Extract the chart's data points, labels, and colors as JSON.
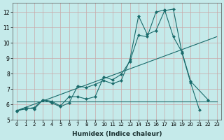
{
  "xlabel": "Humidex (Indice chaleur)",
  "ylabel": "",
  "xlim": [
    -0.5,
    23.5
  ],
  "ylim": [
    5.0,
    12.6
  ],
  "yticks": [
    5,
    6,
    7,
    8,
    9,
    10,
    11,
    12
  ],
  "xticks": [
    0,
    1,
    2,
    3,
    4,
    5,
    6,
    7,
    8,
    9,
    10,
    11,
    12,
    13,
    14,
    15,
    16,
    17,
    18,
    19,
    20,
    21,
    22,
    23
  ],
  "bg_color": "#c5eaea",
  "grid_color": "#c8a8a8",
  "line_color": "#1a6b6b",
  "series1_x": [
    0,
    1,
    2,
    3,
    4,
    5,
    6,
    7,
    8,
    9,
    10,
    11,
    12,
    13,
    14,
    15,
    16,
    17,
    18,
    19,
    20,
    21
  ],
  "series1_y": [
    5.55,
    5.8,
    5.7,
    6.3,
    6.1,
    5.85,
    6.1,
    7.2,
    7.1,
    7.3,
    7.55,
    7.35,
    7.55,
    8.9,
    11.75,
    10.55,
    10.8,
    12.1,
    12.2,
    9.35,
    7.4,
    5.65
  ],
  "series2_x": [
    0,
    1,
    2,
    3,
    4,
    5,
    6,
    7,
    8,
    9,
    10,
    11,
    12,
    13,
    14,
    15,
    16,
    17,
    18,
    19,
    20,
    22
  ],
  "series2_y": [
    5.6,
    5.7,
    5.8,
    6.3,
    6.2,
    5.9,
    6.5,
    6.5,
    6.35,
    6.5,
    7.8,
    7.6,
    7.95,
    8.8,
    10.5,
    10.4,
    12.0,
    12.15,
    10.4,
    9.4,
    7.5,
    6.3
  ],
  "series3_x": [
    0,
    23
  ],
  "series3_y": [
    5.6,
    10.4
  ],
  "series4_x": [
    0,
    23
  ],
  "series4_y": [
    6.2,
    6.2
  ],
  "marker_size": 2.5
}
